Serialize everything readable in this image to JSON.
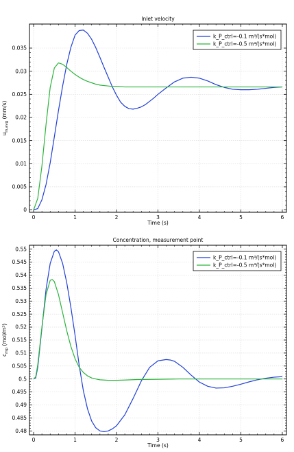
{
  "chart_data": [
    {
      "type": "line",
      "title": "Inlet velocity",
      "xlabel": "Time (s)",
      "ylabel_main": "u",
      "ylabel_sub": "in,avg",
      "ylabel_unit": " (mm/s)",
      "xlim": [
        -0.1,
        6.1
      ],
      "ylim": [
        -0.0005,
        0.0402
      ],
      "xticks": [
        0,
        1,
        2,
        3,
        4,
        5,
        6
      ],
      "yticks": [
        0,
        0.005,
        0.01,
        0.015,
        0.02,
        0.025,
        0.03,
        0.035
      ],
      "ytick_labels": [
        "0",
        "0.005",
        "0.01",
        "0.015",
        "0.02",
        "0.025",
        "0.03",
        "0.035"
      ],
      "legend": "top-right",
      "series": [
        {
          "name": "k_P_ctrl=-0.1 m⁴/(s*mol)",
          "color": "#1f3fd6",
          "x": [
            0,
            0.1,
            0.2,
            0.3,
            0.4,
            0.5,
            0.6,
            0.7,
            0.8,
            0.9,
            1.0,
            1.1,
            1.2,
            1.3,
            1.4,
            1.5,
            1.6,
            1.7,
            1.8,
            1.9,
            2.0,
            2.1,
            2.2,
            2.3,
            2.4,
            2.5,
            2.6,
            2.7,
            2.8,
            2.9,
            3.0,
            3.2,
            3.4,
            3.6,
            3.8,
            4.0,
            4.2,
            4.4,
            4.6,
            4.8,
            5.0,
            5.2,
            5.4,
            5.6,
            5.8,
            6.0
          ],
          "y": [
            0,
            0.0003,
            0.0022,
            0.0055,
            0.0102,
            0.0158,
            0.0215,
            0.0268,
            0.0315,
            0.0352,
            0.0378,
            0.0388,
            0.0389,
            0.0382,
            0.0369,
            0.0351,
            0.033,
            0.0308,
            0.0287,
            0.0266,
            0.0248,
            0.0233,
            0.0224,
            0.0219,
            0.0218,
            0.022,
            0.0223,
            0.0228,
            0.0235,
            0.0242,
            0.025,
            0.0264,
            0.0277,
            0.0285,
            0.0287,
            0.0285,
            0.0279,
            0.0271,
            0.0265,
            0.0261,
            0.026,
            0.026,
            0.0261,
            0.0263,
            0.0265,
            0.0266
          ]
        },
        {
          "name": "k_P_ctrl=-0.5 m⁴/(s*mol)",
          "color": "#2bb33b",
          "x": [
            0,
            0.1,
            0.2,
            0.3,
            0.4,
            0.5,
            0.6,
            0.7,
            0.8,
            0.9,
            1.0,
            1.1,
            1.2,
            1.3,
            1.4,
            1.5,
            1.6,
            1.7,
            1.8,
            1.9,
            2.0,
            2.2,
            2.4,
            2.6,
            2.8,
            3.0,
            3.5,
            4.0,
            4.5,
            5.0,
            5.5,
            6.0
          ],
          "y": [
            0,
            0.0025,
            0.0095,
            0.0185,
            0.0265,
            0.0307,
            0.0318,
            0.0315,
            0.0308,
            0.03,
            0.0293,
            0.0287,
            0.0282,
            0.0278,
            0.0275,
            0.0272,
            0.027,
            0.0269,
            0.0268,
            0.0267,
            0.0267,
            0.0266,
            0.0266,
            0.0266,
            0.0266,
            0.0266,
            0.0266,
            0.0266,
            0.0266,
            0.0266,
            0.0266,
            0.0266
          ]
        }
      ]
    },
    {
      "type": "line",
      "title": "Concentration, measurement point",
      "xlabel": "Time (s)",
      "ylabel_main": "c",
      "ylabel_sub": "mp",
      "ylabel_unit": " (mol/m³)",
      "xlim": [
        -0.1,
        6.1
      ],
      "ylim": [
        0.4785,
        0.5515
      ],
      "xticks": [
        0,
        1,
        2,
        3,
        4,
        5,
        6
      ],
      "yticks": [
        0.48,
        0.485,
        0.49,
        0.495,
        0.5,
        0.505,
        0.51,
        0.515,
        0.52,
        0.525,
        0.53,
        0.535,
        0.54,
        0.545,
        0.55
      ],
      "ytick_labels": [
        "0.48",
        "0.485",
        "0.49",
        "0.495",
        "0.5",
        "0.505",
        "0.51",
        "0.515",
        "0.52",
        "0.525",
        "0.53",
        "0.535",
        "0.54",
        "0.545",
        "0.55"
      ],
      "legend": "top-right",
      "series": [
        {
          "name": "k_P_ctrl=-0.1 m⁴/(s*mol)",
          "color": "#1f3fd6",
          "x": [
            0,
            0.05,
            0.1,
            0.2,
            0.3,
            0.4,
            0.5,
            0.55,
            0.6,
            0.7,
            0.8,
            0.9,
            1.0,
            1.1,
            1.2,
            1.3,
            1.4,
            1.5,
            1.6,
            1.7,
            1.8,
            1.9,
            2.0,
            2.2,
            2.4,
            2.6,
            2.8,
            3.0,
            3.2,
            3.3,
            3.4,
            3.6,
            3.8,
            4.0,
            4.2,
            4.4,
            4.6,
            4.8,
            5.0,
            5.2,
            5.4,
            5.6,
            5.8,
            6.0
          ],
          "y": [
            0.5,
            0.5004,
            0.5045,
            0.5195,
            0.5345,
            0.5445,
            0.5492,
            0.5497,
            0.549,
            0.5445,
            0.537,
            0.5275,
            0.5168,
            0.5052,
            0.4955,
            0.4885,
            0.4838,
            0.4812,
            0.48,
            0.4797,
            0.48,
            0.4808,
            0.482,
            0.4862,
            0.4925,
            0.4993,
            0.5045,
            0.507,
            0.5075,
            0.5073,
            0.5068,
            0.5045,
            0.5015,
            0.4988,
            0.4972,
            0.4965,
            0.4966,
            0.4972,
            0.498,
            0.4989,
            0.4997,
            0.5003,
            0.5007,
            0.5009
          ]
        },
        {
          "name": "k_P_ctrl=-0.5 m⁴/(s*mol)",
          "color": "#2bb33b",
          "x": [
            0,
            0.05,
            0.1,
            0.2,
            0.3,
            0.4,
            0.45,
            0.5,
            0.6,
            0.7,
            0.8,
            0.9,
            1.0,
            1.1,
            1.2,
            1.3,
            1.4,
            1.5,
            1.6,
            1.8,
            2.0,
            2.2,
            2.5,
            3.0,
            3.5,
            4.0,
            4.5,
            5.0,
            5.5,
            6.0
          ],
          "y": [
            0.5,
            0.5008,
            0.5055,
            0.52,
            0.5325,
            0.538,
            0.5383,
            0.5375,
            0.5325,
            0.5255,
            0.5185,
            0.5125,
            0.5078,
            0.5045,
            0.5025,
            0.5012,
            0.5004,
            0.5,
            0.4997,
            0.4995,
            0.4995,
            0.4996,
            0.4998,
            0.4999,
            0.5,
            0.5,
            0.5,
            0.5,
            0.5,
            0.5
          ]
        }
      ]
    }
  ]
}
